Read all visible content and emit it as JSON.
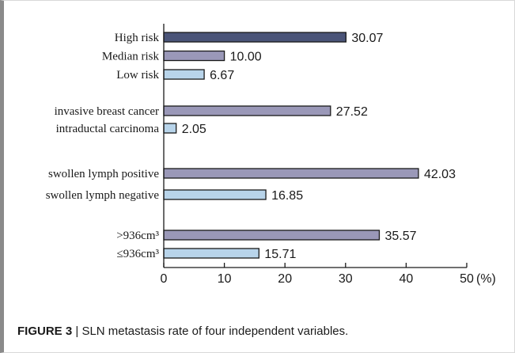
{
  "caption": {
    "label": "FIGURE 3",
    "separator": "|",
    "text": "SLN metastasis rate of four independent variables."
  },
  "colors": {
    "dark_bar": "#4a5478",
    "mid_bar": "#9a98b8",
    "light_bar": "#b8d4ea",
    "bar_stroke": "#1a1a1a"
  },
  "chart_data": {
    "type": "bar",
    "orientation": "horizontal",
    "unit_label": "(%)",
    "xlim": [
      0,
      50
    ],
    "xticks": [
      0,
      10,
      20,
      30,
      40,
      50
    ],
    "grid": false,
    "groups": [
      {
        "bars": [
          {
            "label": "High risk",
            "value": 30.07,
            "value_text": "30.07",
            "color": "dark"
          },
          {
            "label": "Median risk",
            "value": 10.0,
            "value_text": "10.00",
            "color": "mid"
          },
          {
            "label": "Low risk",
            "value": 6.67,
            "value_text": "6.67",
            "color": "light"
          }
        ]
      },
      {
        "bars": [
          {
            "label": "invasive breast cancer",
            "value": 27.52,
            "value_text": "27.52",
            "color": "mid"
          },
          {
            "label": "intraductal carcinoma",
            "value": 2.05,
            "value_text": "2.05",
            "color": "light"
          }
        ]
      },
      {
        "bars": [
          {
            "label": "swollen lymph positive",
            "value": 42.03,
            "value_text": "42.03",
            "color": "mid"
          },
          {
            "label": "swollen lymph negative",
            "value": 16.85,
            "value_text": "16.85",
            "color": "light"
          }
        ]
      },
      {
        "bars": [
          {
            "label": ">936cm³",
            "value": 35.57,
            "value_text": "35.57",
            "color": "mid"
          },
          {
            "label": "≤936cm³",
            "value": 15.71,
            "value_text": "15.71",
            "color": "light"
          }
        ]
      }
    ]
  }
}
